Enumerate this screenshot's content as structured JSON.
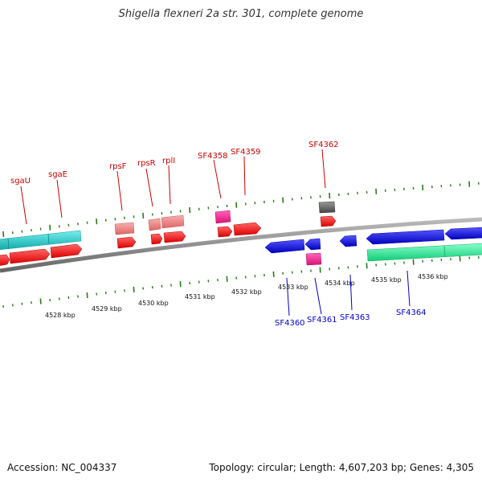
{
  "title": "Shigella flexneri 2a str. 301, complete genome",
  "footer": {
    "accession": "Accession: NC_004337",
    "summary": "Topology: circular; Length: 4,607,203 bp; Genes: 4,305"
  },
  "colors": {
    "forward_label": "#cc0000",
    "reverse_label": "#0000cc",
    "backbone": "#888888",
    "ticks": "#2a7a1a",
    "red_gene": "#ee1111",
    "pink_gene": "#ee8888",
    "magenta_gene": "#ee2288",
    "gray_gene": "#666666",
    "blue_gene": "#1111dd",
    "cyan_gene": "#22c8cc",
    "mint_gene": "#22ee99"
  },
  "scale_labels": [
    "4528 kbp",
    "4529 kbp",
    "4530 kbp",
    "4531 kbp",
    "4532 kbp",
    "4533 kbp",
    "4534 kbp",
    "4535 kbp",
    "4536 kbp"
  ],
  "forward_gene_labels": [
    "sgaU",
    "sgaE",
    "rpsF",
    "rpsR",
    "rplI",
    "SF4358",
    "SF4359",
    "SF4362"
  ],
  "reverse_gene_labels": [
    "SF4360",
    "SF4361",
    "SF4363",
    "SF4364"
  ]
}
